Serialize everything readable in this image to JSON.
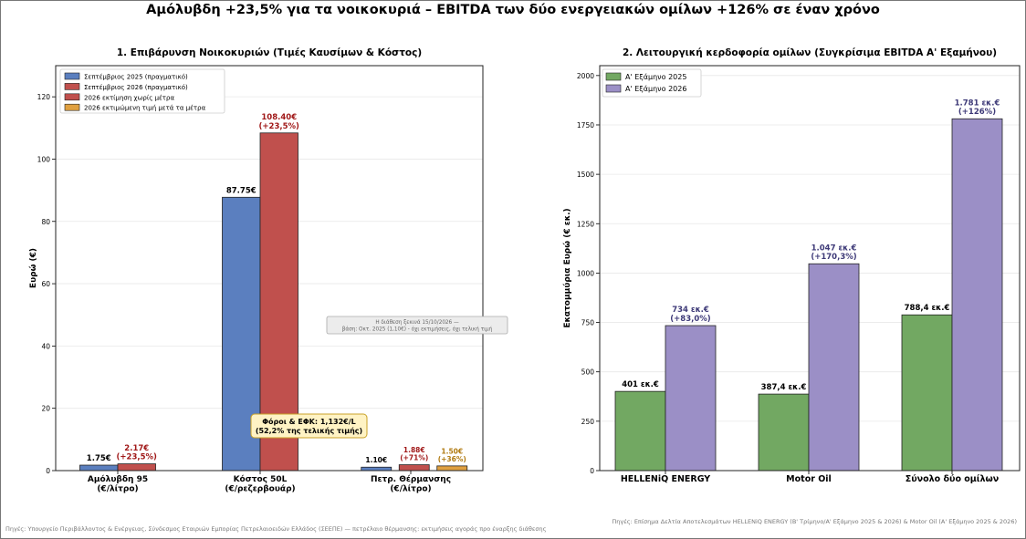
{
  "suptitle": "Αμόλυβδη +23,5% για τα νοικοκυριά – EBITDA των δύο ενεργειακών ομίλων +126% σε έναν χρόνο",
  "footer_left": "Πηγές: Υπουργείο Περιβάλλοντος & Ενέργειας, Σύνδεσμος Εταιριών Εμπορίας Πετρελαιοειδών Ελλάδος (ΣΕΕΠΕ) — πετρέλαιο θέρμανσης: εκτιμήσεις αγοράς προ έναρξης διάθεσης",
  "footer_right": "Πηγές: Επίσημα Δελτία Αποτελεσμάτων HELLENiQ ENERGY (Β' Τρίμηνο/Α' Εξάμηνο 2025 & 2026) & Motor Oil (Α' Εξάμηνο 2025 & 2026)",
  "colors": {
    "blue": "#5b7fbf",
    "red": "#c0504d",
    "orange": "#e0a040",
    "green": "#72a862",
    "purple": "#9b8fc6",
    "red_text": "#a01818",
    "orange_text": "#b07a10",
    "purple_text": "#3e3a78"
  },
  "chart_data": [
    {
      "type": "bar",
      "title": "1. Επιβάρυνση Νοικοκυριών (Τιμές Καυσίμων & Κόστος)",
      "ylabel": "Ευρώ (€)",
      "ylim": [
        0,
        130
      ],
      "yticks": [
        0,
        20,
        40,
        60,
        80,
        100,
        120
      ],
      "grid": true,
      "legend": "top-left",
      "categories": [
        "Αμόλυβδη 95\n(€/λίτρο)",
        "Κόστος 50L\n(€/ρεζερβουάρ)",
        "Πετρ. Θέρμανσης\n(€/λίτρο)"
      ],
      "series": [
        {
          "name": "Σεπτέμβριος 2025 (πραγματικό)",
          "values": [
            1.75,
            87.75,
            1.1
          ],
          "labels": [
            "1.75€",
            "87.75€",
            "1.10€"
          ]
        },
        {
          "name": "Σεπτέμβριος 2026 (πραγματικό)",
          "values": [
            2.17,
            108.4,
            null
          ],
          "labels": [
            "2.17€\n(+23,5%)",
            "108.40€\n(+23,5%)",
            ""
          ]
        },
        {
          "name": "2026 εκτίμηση χωρίς μέτρα",
          "values": [
            null,
            null,
            1.88
          ],
          "labels": [
            "",
            "",
            "1.88€\n(+71%)"
          ]
        },
        {
          "name": "2026 εκτιμώμενη τιμή μετά τα μέτρα",
          "values": [
            null,
            null,
            1.5
          ],
          "labels": [
            "",
            "",
            "1.50€\n(+36%)"
          ]
        }
      ],
      "annotations": [
        {
          "text": "Φόροι & ΕΦΚ: 1,132€/L\n(52,2% της τελικής τιμής)"
        },
        {
          "text": "Η διάθεση ξεκινά 15/10/2026 —\nβάση: Οκτ. 2025 (1,10€) - όχι εκτιμήσεις, όχι τελική τιμή"
        }
      ]
    },
    {
      "type": "bar",
      "title": "2. Λειτουργική κερδοφορία ομίλων (Συγκρίσιμα EBITDA Α' Εξαμήνου)",
      "ylabel": "Εκατομμύρια Ευρώ (€ εκ.)",
      "ylim": [
        0,
        2050
      ],
      "yticks": [
        0,
        250,
        500,
        750,
        1000,
        1250,
        1500,
        1750,
        2000
      ],
      "grid": true,
      "legend": "top-left",
      "categories": [
        "HELLENiQ ENERGY",
        "Motor Oil",
        "Σύνολο δύο ομίλων"
      ],
      "series": [
        {
          "name": "Α' Εξάμηνο 2025",
          "values": [
            401,
            387.4,
            788.4
          ],
          "labels": [
            "401 εκ.€",
            "387,4 εκ.€",
            "788,4 εκ.€"
          ]
        },
        {
          "name": "Α' Εξάμηνο 2026",
          "values": [
            734,
            1047,
            1781
          ],
          "labels": [
            "734 εκ.€\n(+83,0%)",
            "1.047 εκ.€\n(+170,3%)",
            "1.781 εκ.€\n(+126%)"
          ]
        }
      ]
    }
  ]
}
